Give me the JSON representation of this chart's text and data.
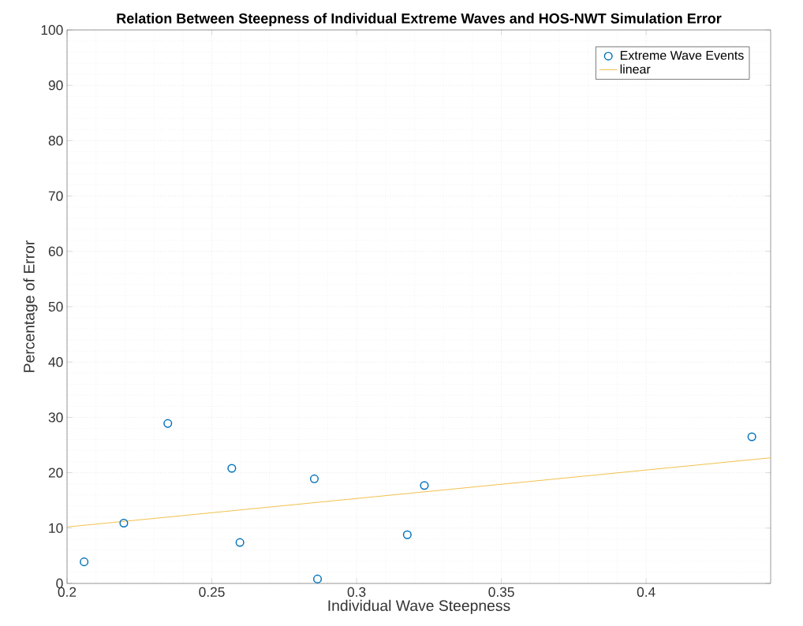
{
  "chart_data": {
    "type": "scatter",
    "title": "Relation Between Steepness of Individual Extreme Waves and HOS-NWT Simulation Error",
    "xlabel": "Individual Wave Steepness",
    "ylabel": "Percentage of Error",
    "series": [
      {
        "name": "Extreme Wave Events",
        "marker": "circle",
        "color": "#0072bd",
        "x": [
          0.2059,
          0.2196,
          0.2348,
          0.2569,
          0.2597,
          0.2854,
          0.2865,
          0.3175,
          0.3234,
          0.4365
        ],
        "values": [
          3.9,
          10.9,
          28.9,
          20.8,
          7.4,
          18.9,
          0.8,
          8.8,
          17.7,
          26.5
        ]
      },
      {
        "name": "linear",
        "type": "line",
        "marker": "none",
        "line_style": "solid",
        "color": "#edb120",
        "x": [
          0.2,
          0.443
        ],
        "values": [
          10.2,
          22.7
        ]
      }
    ],
    "xlim": [
      0.2,
      0.443
    ],
    "ylim": [
      0,
      100
    ],
    "xticks": [
      0.2,
      0.25,
      0.3,
      0.35,
      0.4
    ],
    "yticks": [
      0,
      10,
      20,
      30,
      40,
      50,
      60,
      70,
      80,
      90,
      100
    ],
    "grid": true,
    "legend": "top right"
  }
}
